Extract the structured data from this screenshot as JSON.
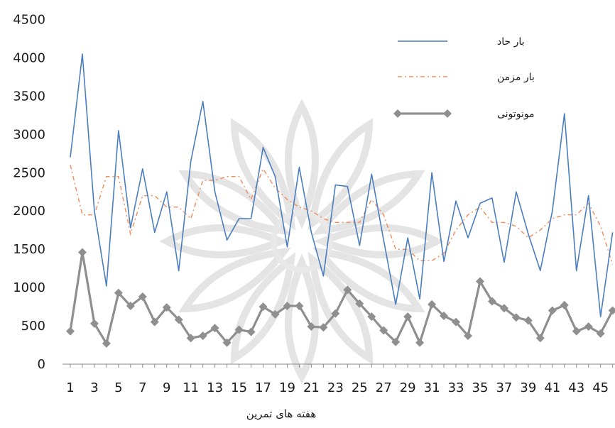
{
  "chart_data": {
    "type": "line",
    "title": "",
    "xlabel": "هفته های تمرین",
    "ylabel": "",
    "x": [
      1,
      2,
      3,
      4,
      5,
      6,
      7,
      8,
      9,
      10,
      11,
      12,
      13,
      14,
      15,
      16,
      17,
      18,
      19,
      20,
      21,
      22,
      23,
      24,
      25,
      26,
      27,
      28,
      29,
      30,
      31,
      32,
      33,
      34,
      35,
      36,
      37,
      38,
      39,
      40,
      41,
      42,
      43,
      44,
      45,
      46
    ],
    "xtick_labels": [
      "1",
      "3",
      "5",
      "7",
      "9",
      "11",
      "13",
      "15",
      "17",
      "19",
      "21",
      "23",
      "25",
      "27",
      "29",
      "31",
      "33",
      "35",
      "37",
      "39",
      "41",
      "43",
      "45"
    ],
    "yticks": [
      0,
      500,
      1000,
      1500,
      2000,
      2500,
      3000,
      3500,
      4000,
      4500
    ],
    "ylim": [
      0,
      4500
    ],
    "grid": false,
    "legend_position": "top-right",
    "series": [
      {
        "name": "بار حاد",
        "color": "#4a7ebf",
        "style": "solid",
        "values": [
          2700,
          4050,
          2000,
          1020,
          3050,
          1780,
          2550,
          1720,
          2250,
          1220,
          2650,
          3430,
          2250,
          1620,
          1900,
          1900,
          2830,
          2450,
          1530,
          2570,
          1720,
          1150,
          2340,
          2320,
          1550,
          2480,
          1620,
          780,
          1650,
          850,
          2500,
          1340,
          2130,
          1650,
          2100,
          2170,
          1330,
          2250,
          1700,
          1220,
          2000,
          3270,
          1220,
          2200,
          620,
          1720
        ]
      },
      {
        "name": "بار مزمن",
        "color": "#f09060",
        "style": "dashdot",
        "values": [
          2600,
          1950,
          1950,
          2450,
          2450,
          1700,
          2200,
          2200,
          2050,
          2050,
          1900,
          2400,
          2400,
          2450,
          2450,
          2150,
          2550,
          2300,
          2150,
          2050,
          2000,
          1900,
          1850,
          1850,
          1850,
          2150,
          1950,
          1500,
          1500,
          1350,
          1350,
          1450,
          1750,
          1950,
          2050,
          1850,
          1850,
          1800,
          1650,
          1750,
          1900,
          1950,
          1950,
          2100,
          1800,
          1300
        ]
      },
      {
        "name": "مونوتونی",
        "color": "#8f8f8f",
        "style": "marker",
        "values": [
          430,
          1460,
          530,
          270,
          930,
          760,
          880,
          550,
          740,
          580,
          340,
          370,
          470,
          280,
          450,
          420,
          750,
          650,
          760,
          760,
          490,
          480,
          660,
          970,
          790,
          620,
          440,
          290,
          620,
          280,
          780,
          630,
          550,
          370,
          1080,
          820,
          730,
          610,
          570,
          340,
          700,
          770,
          430,
          490,
          400,
          700
        ]
      }
    ]
  }
}
